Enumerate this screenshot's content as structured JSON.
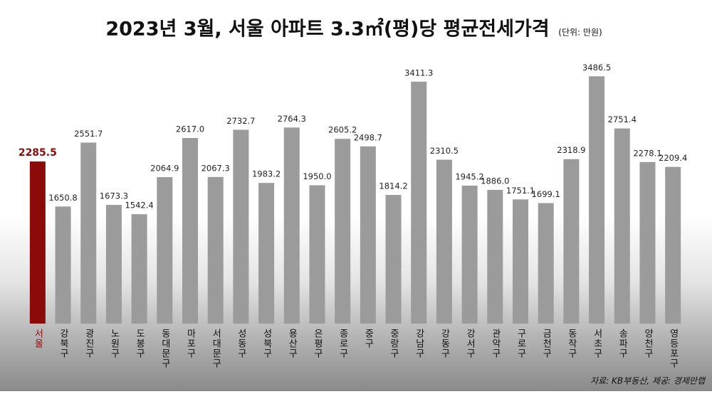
{
  "chart_data": {
    "type": "bar",
    "title": "2023년 3월, 서울 아파트 3.3㎡(평)당 평균전세가격",
    "subtitle": "(단위: 만원)",
    "source": "자료: KB부동산, 제공: 경제만랩",
    "categories": [
      "서울",
      "강북구",
      "광진구",
      "노원구",
      "도봉구",
      "동대문구",
      "마포구",
      "서대문구",
      "성동구",
      "성북구",
      "용산구",
      "은평구",
      "종로구",
      "중구",
      "중랑구",
      "강남구",
      "강동구",
      "강서구",
      "관악구",
      "구로구",
      "금천구",
      "동작구",
      "서초구",
      "송파구",
      "양천구",
      "영등포구"
    ],
    "values": [
      2285.5,
      1650.8,
      2551.7,
      1673.3,
      1542.4,
      2064.9,
      2617.0,
      2067.3,
      2732.7,
      1983.2,
      2764.3,
      1950.0,
      2605.2,
      2498.7,
      1814.2,
      3411.3,
      2310.5,
      1945.2,
      1886.0,
      1751.1,
      1699.1,
      2318.9,
      3486.5,
      2751.4,
      2278.1,
      2209.4
    ],
    "value_labels": [
      "2285.5",
      "1650.8",
      "2551.7",
      "1673.3",
      "1542.4",
      "2064.9",
      "2617.0",
      "2067.3",
      "2732.7",
      "1983.2",
      "2764.3",
      "1950.0",
      "2605.2",
      "2498.7",
      "1814.2",
      "3411.3",
      "2310.5",
      "1945.2",
      "1886.0",
      "1751.1",
      "1699.1",
      "2318.9",
      "3486.5",
      "2751.4",
      "2278.1",
      "2209.4"
    ],
    "colors": [
      "#8b0a0a",
      "#9b9b9b",
      "#9b9b9b",
      "#9b9b9b",
      "#9b9b9b",
      "#9b9b9b",
      "#9b9b9b",
      "#9b9b9b",
      "#9b9b9b",
      "#9b9b9b",
      "#9b9b9b",
      "#9b9b9b",
      "#9b9b9b",
      "#9b9b9b",
      "#9b9b9b",
      "#9b9b9b",
      "#9b9b9b",
      "#9b9b9b",
      "#9b9b9b",
      "#9b9b9b",
      "#9b9b9b",
      "#9b9b9b",
      "#9b9b9b",
      "#9b9b9b",
      "#9b9b9b",
      "#9b9b9b"
    ],
    "ylim": [
      0,
      3700
    ]
  }
}
